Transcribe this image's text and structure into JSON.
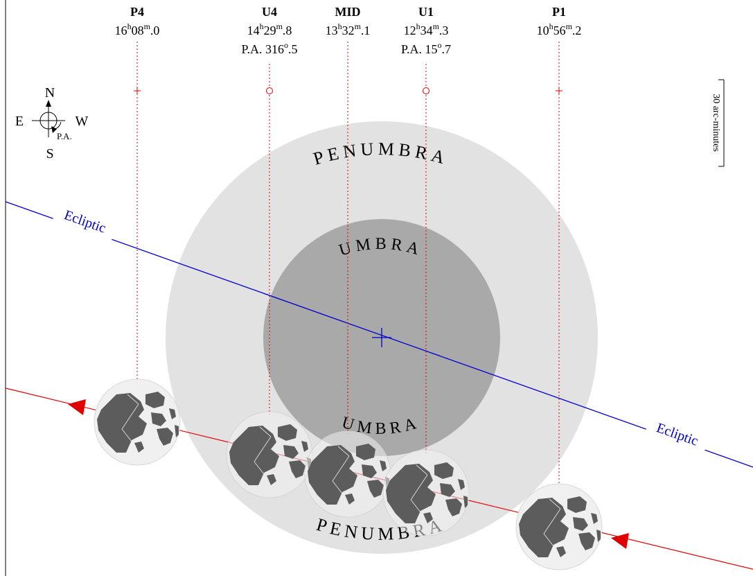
{
  "contacts": [
    {
      "id": "p4",
      "label": "P4",
      "h": "16",
      "m": "08",
      "frac": "0",
      "pa": null
    },
    {
      "id": "u4",
      "label": "U4",
      "h": "14",
      "m": "29",
      "frac": "8",
      "pa": {
        "prefix": "P.A. ",
        "deg": "316",
        "frac": "5"
      }
    },
    {
      "id": "mid",
      "label": "MID",
      "h": "13",
      "m": "32",
      "frac": "1",
      "pa": null
    },
    {
      "id": "u1",
      "label": "U1",
      "h": "12",
      "m": "34",
      "frac": "3",
      "pa": {
        "prefix": "P.A. ",
        "deg": "15",
        "frac": "7"
      }
    },
    {
      "id": "p1",
      "label": "P1",
      "h": "10",
      "m": "56",
      "frac": "2",
      "pa": null
    }
  ],
  "units": {
    "hour": "h",
    "minute": "m",
    "degree": "o",
    "fraction_dot": "."
  },
  "compass": {
    "north": "N",
    "south": "S",
    "east": "E",
    "west": "W",
    "position_angle": "P.A."
  },
  "shadow_labels": {
    "penumbra": "PENUMBRA",
    "umbra": "UMBRA"
  },
  "ecliptic_label": "Ecliptic",
  "scale_label": "30 arc-minutes",
  "colors": {
    "penumbra": "#e2e2e2",
    "umbra": "#a9a9a9",
    "ecliptic": "#0000cc",
    "moon_path": "#e00000",
    "contact_line": "#e00000",
    "moon_disk": "#f0f0f0",
    "maria": "#5c5c5c"
  }
}
